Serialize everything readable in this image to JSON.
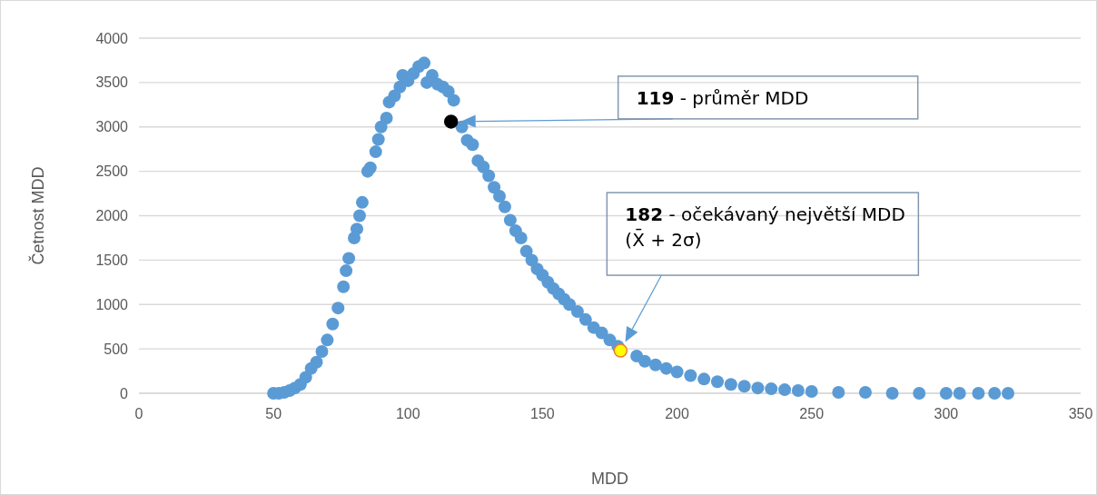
{
  "chart_data": {
    "type": "scatter",
    "xlabel": "MDD",
    "ylabel": "Četnost MDD",
    "xlim": [
      0,
      350
    ],
    "ylim": [
      0,
      4000
    ],
    "xticks": [
      0,
      50,
      100,
      150,
      200,
      250,
      300,
      350
    ],
    "yticks": [
      0,
      500,
      1000,
      1500,
      2000,
      2500,
      3000,
      3500,
      4000
    ],
    "grid": "y",
    "marker": "circle",
    "series": [
      {
        "color": "#5b9bd5",
        "x": [
          50,
          52,
          54,
          56,
          58,
          60,
          62,
          64,
          66,
          68,
          70,
          72,
          74,
          76,
          77,
          78,
          80,
          81,
          82,
          83,
          85,
          86,
          88,
          89,
          90,
          92,
          93,
          95,
          97,
          98,
          100,
          102,
          104,
          106,
          107,
          109,
          111,
          113,
          115,
          117,
          120,
          122,
          124,
          126,
          128,
          130,
          132,
          134,
          136,
          138,
          140,
          142,
          144,
          146,
          148,
          150,
          152,
          154,
          156,
          158,
          160,
          163,
          166,
          169,
          172,
          175,
          178,
          185,
          188,
          192,
          196,
          200,
          205,
          210,
          215,
          220,
          225,
          230,
          235,
          240,
          245,
          250,
          260,
          270,
          280,
          290,
          300,
          305,
          312,
          318,
          323
        ],
        "values": [
          0,
          0,
          10,
          30,
          60,
          100,
          180,
          280,
          350,
          470,
          600,
          780,
          960,
          1200,
          1380,
          1520,
          1750,
          1850,
          2000,
          2150,
          2500,
          2540,
          2720,
          2860,
          3000,
          3100,
          3280,
          3350,
          3450,
          3580,
          3520,
          3600,
          3680,
          3720,
          3500,
          3580,
          3480,
          3450,
          3400,
          3300,
          3000,
          2850,
          2800,
          2620,
          2550,
          2450,
          2320,
          2220,
          2100,
          1950,
          1830,
          1750,
          1600,
          1500,
          1400,
          1330,
          1250,
          1180,
          1120,
          1060,
          1000,
          920,
          830,
          740,
          680,
          600,
          530,
          420,
          360,
          320,
          280,
          240,
          200,
          160,
          130,
          100,
          80,
          60,
          50,
          40,
          30,
          20,
          10,
          10,
          0,
          0,
          0,
          0,
          0,
          0,
          0
        ]
      },
      {
        "color": "#000000",
        "x": [
          116
        ],
        "values": [
          3060
        ]
      },
      {
        "color": "#ffff00",
        "x": [
          179
        ],
        "values": [
          480
        ]
      }
    ],
    "annotations": [
      "119 - průměr MDD",
      "182 - očekávaný největší MDD\n(X̄ + 2σ)"
    ]
  }
}
